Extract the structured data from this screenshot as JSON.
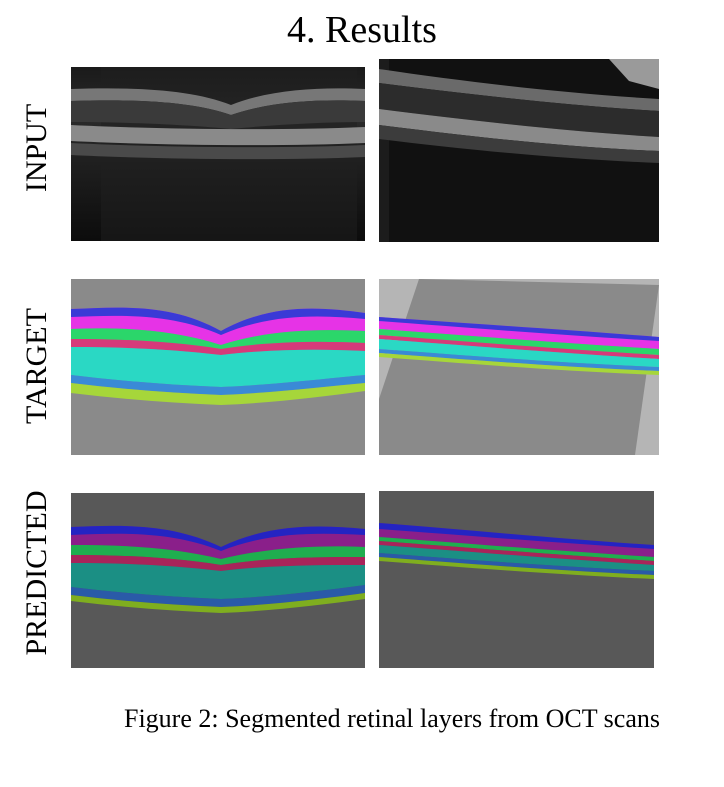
{
  "figure": {
    "title": "4. Results",
    "row_labels": [
      "INPUT",
      "TARGET",
      "PREDICTED"
    ],
    "caption": "Figure 2: Segmented retinal layers from OCT scans"
  }
}
